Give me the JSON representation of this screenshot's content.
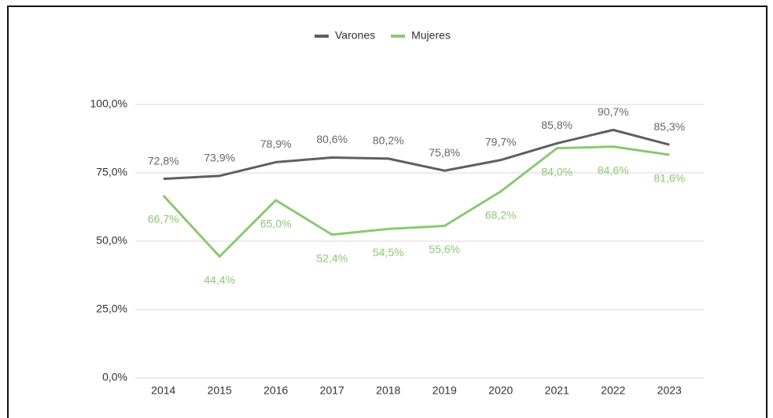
{
  "chart_data": {
    "type": "line",
    "categories": [
      "2014",
      "2015",
      "2016",
      "2017",
      "2018",
      "2019",
      "2020",
      "2021",
      "2022",
      "2023"
    ],
    "series": [
      {
        "name": "Varones",
        "color": "#5f5f5f",
        "values": [
          72.8,
          73.9,
          78.9,
          80.6,
          80.2,
          75.8,
          79.7,
          85.8,
          90.7,
          85.3
        ],
        "value_labels": [
          "72,8%",
          "73,9%",
          "78,9%",
          "80,6%",
          "80,2%",
          "75,8%",
          "79,7%",
          "85,8%",
          "90,7%",
          "85,3%"
        ]
      },
      {
        "name": "Mujeres",
        "color": "#8cc873",
        "values": [
          66.7,
          44.4,
          65.0,
          52.4,
          54.5,
          55.6,
          68.2,
          84.0,
          84.6,
          81.6
        ],
        "value_labels": [
          "66,7%",
          "44,4%",
          "65,0%",
          "52,4%",
          "54,5%",
          "55,6%",
          "68,2%",
          "84,0%",
          "84,6%",
          "81,6%"
        ]
      }
    ],
    "ylim": [
      0,
      100
    ],
    "yticks": [
      {
        "value": 0,
        "label": "0,0%"
      },
      {
        "value": 25,
        "label": "25,0%"
      },
      {
        "value": 50,
        "label": "50,0%"
      },
      {
        "value": 75,
        "label": "75,0%"
      },
      {
        "value": 100,
        "label": "100,0%"
      }
    ],
    "grid": true,
    "legend": "top"
  }
}
